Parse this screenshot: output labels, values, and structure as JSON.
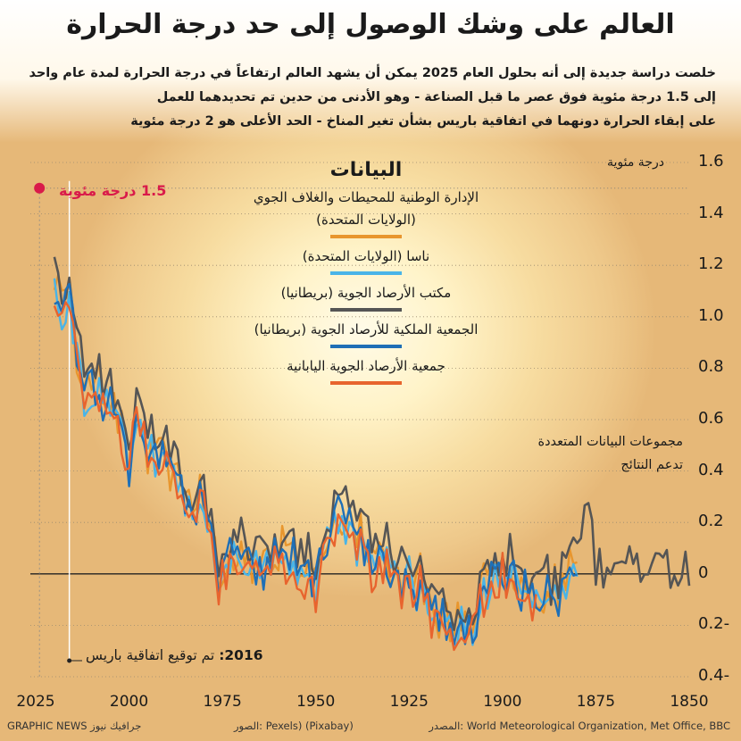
{
  "title": "العالم على وشك الوصول إلى حد درجة الحرارة",
  "subtitle_lines": [
    "خلصت دراسة جديدة إلى أنه بحلول العام 2025 يمكن أن يشهد العالم ارتفاعاً في درجة الحرارة لمدة عام واحد",
    "إلى 1.5 درجة مئوية فوق عصر ما قبل الصناعة - وهو الأدنى من حدين تم تحديدهما للعمل",
    "على إبقاء الحرارة دونهما في اتفاقية باريس بشأن تغير المناخ - الحد الأعلى هو 2 درجة مئوية"
  ],
  "y_unit": "درجة مئوية",
  "threshold_label": "1.5 درجة مئوية",
  "paris_year": "2016:",
  "paris_text": "تم توقيع اتفاقية باريس",
  "note_lines": [
    "مجموعات البيانات المتعددة",
    "تدعم النتائج"
  ],
  "legend_title": "البيانات",
  "footer": {
    "source": "المصدر: World Meteorological Organization, Met Office, BBC",
    "photos": "الصور: Pexels) (Pixabay)",
    "credit": "GRAPHIC NEWS جرافيك نيوز"
  },
  "colors": {
    "threshold": "#d91a4a",
    "zero_line": "#222222"
  },
  "chart_data": {
    "type": "line",
    "x_reversed": true,
    "xlim": [
      2025,
      1850
    ],
    "ylim": [
      -0.4,
      1.6
    ],
    "x_ticks": [
      "2025",
      "2000",
      "1975",
      "1950",
      "1925",
      "1900",
      "1875",
      "1850"
    ],
    "x_tick_values": [
      2025,
      2000,
      1975,
      1950,
      1925,
      1900,
      1875,
      1850
    ],
    "y_ticks": [
      "1.6",
      "1.4",
      "1.2",
      "1.0",
      "0.8",
      "0.6",
      "0.4",
      "0.2",
      "0",
      "0.2-",
      "0.4-"
    ],
    "y_tick_values": [
      1.6,
      1.4,
      1.2,
      1.0,
      0.8,
      0.6,
      0.4,
      0.2,
      0,
      -0.2,
      -0.4
    ],
    "threshold": {
      "x": 2024,
      "y": 1.5
    },
    "paris_year": 2016,
    "series": [
      {
        "name": "الإدارة الوطنية للمحيطات والغلاف الجوي",
        "name2": "(الولايات المتحدة)",
        "color": "#e8962e",
        "start": 1880,
        "end": 2020,
        "offset": 0.0,
        "seed": 3
      },
      {
        "name": "ناسا (الولايات المتحدة)",
        "name2": "",
        "color": "#49b4e8",
        "start": 1880,
        "end": 2020,
        "offset": -0.03,
        "seed": 7
      },
      {
        "name": "مكتب الأرصاد الجوية (بريطانيا)",
        "name2": "",
        "color": "#555555",
        "start": 1850,
        "end": 2020,
        "offset": 0.05,
        "seed": 11
      },
      {
        "name": "الجمعية الملكية للأرصاد الجوية (بريطانيا)",
        "name2": "",
        "color": "#1f6fb6",
        "start": 1880,
        "end": 2020,
        "offset": -0.02,
        "seed": 17
      },
      {
        "name": "جمعية الأرصاد الجوية اليابانية",
        "name2": "",
        "color": "#e8642e",
        "start": 1891,
        "end": 2020,
        "offset": -0.05,
        "seed": 23
      }
    ],
    "base_anchors": [
      [
        1850,
        -0.05
      ],
      [
        1855,
        0.0
      ],
      [
        1860,
        -0.02
      ],
      [
        1865,
        0.02
      ],
      [
        1870,
        -0.02
      ],
      [
        1875,
        0.0
      ],
      [
        1878,
        0.3
      ],
      [
        1880,
        0.02
      ],
      [
        1885,
        -0.05
      ],
      [
        1890,
        -0.08
      ],
      [
        1895,
        -0.03
      ],
      [
        1900,
        0.02
      ],
      [
        1905,
        -0.05
      ],
      [
        1909,
        -0.2
      ],
      [
        1912,
        -0.18
      ],
      [
        1917,
        -0.18
      ],
      [
        1920,
        -0.05
      ],
      [
        1925,
        0.0
      ],
      [
        1930,
        0.05
      ],
      [
        1935,
        0.05
      ],
      [
        1940,
        0.2
      ],
      [
        1944,
        0.28
      ],
      [
        1947,
        0.15
      ],
      [
        1950,
        0.0
      ],
      [
        1955,
        0.05
      ],
      [
        1960,
        0.1
      ],
      [
        1965,
        0.05
      ],
      [
        1970,
        0.1
      ],
      [
        1975,
        0.05
      ],
      [
        1976,
        0.02
      ],
      [
        1980,
        0.3
      ],
      [
        1985,
        0.3
      ],
      [
        1990,
        0.45
      ],
      [
        1995,
        0.5
      ],
      [
        1998,
        0.68
      ],
      [
        2000,
        0.45
      ],
      [
        2005,
        0.7
      ],
      [
        2010,
        0.75
      ],
      [
        2012,
        0.68
      ],
      [
        2015,
        0.95
      ],
      [
        2016,
        1.12
      ],
      [
        2018,
        1.0
      ],
      [
        2019,
        1.12
      ],
      [
        2020,
        1.15
      ]
    ]
  }
}
